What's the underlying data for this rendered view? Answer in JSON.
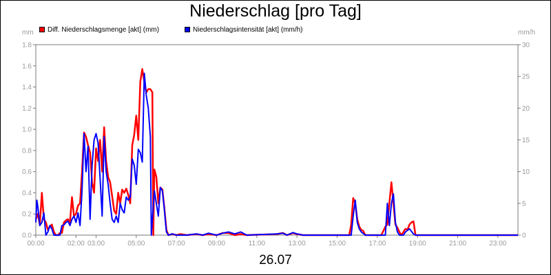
{
  "title": "Niederschlag [pro Tag]",
  "date_label": "26.07",
  "chart_data": {
    "type": "line",
    "title": "Niederschlag [pro Tag]",
    "xlabel": "26.07",
    "y_unit_left": "mm",
    "y_unit_right": "mm/h",
    "xlim": [
      0,
      24
    ],
    "ylim_left": [
      0,
      1.8
    ],
    "ylim_right": [
      0,
      30
    ],
    "y_ticks_left": [
      "0.0",
      "0.2",
      "0.4",
      "0.6",
      "0.8",
      "1.0",
      "1.2",
      "1.4",
      "1.6",
      "1.8"
    ],
    "y_ticks_right": [
      "0",
      "5",
      "10",
      "15",
      "20",
      "25",
      "30"
    ],
    "x_ticks": [
      {
        "x": 0,
        "label": "00:00"
      },
      {
        "x": 2,
        "label": "02:00"
      },
      {
        "x": 3,
        "label": "03:00"
      },
      {
        "x": 5,
        "label": "05:00"
      },
      {
        "x": 7,
        "label": "07:00"
      },
      {
        "x": 9,
        "label": "09:00"
      },
      {
        "x": 11,
        "label": "11:00"
      },
      {
        "x": 13,
        "label": "13:00"
      },
      {
        "x": 15,
        "label": "15:00"
      },
      {
        "x": 17,
        "label": "17:00"
      },
      {
        "x": 19,
        "label": "19:00"
      },
      {
        "x": 21,
        "label": "21:00"
      },
      {
        "x": 23,
        "label": "23:00"
      }
    ],
    "grid": false,
    "legend_position": "top-left",
    "series": [
      {
        "name": "Diff. Niederschlagsmenge [akt] (mm)",
        "axis": "left",
        "color": "#ff0000",
        "points": [
          [
            0,
            0.15
          ],
          [
            0.1,
            0.2
          ],
          [
            0.2,
            0.1
          ],
          [
            0.3,
            0.4
          ],
          [
            0.4,
            0.15
          ],
          [
            0.5,
            0.12
          ],
          [
            0.6,
            0.05
          ],
          [
            0.7,
            0.08
          ],
          [
            0.8,
            0.1
          ],
          [
            0.9,
            0.03
          ],
          [
            1.0,
            0.0
          ],
          [
            1.1,
            0.0
          ],
          [
            1.2,
            0.02
          ],
          [
            1.3,
            0.02
          ],
          [
            1.4,
            0.12
          ],
          [
            1.5,
            0.14
          ],
          [
            1.6,
            0.15
          ],
          [
            1.7,
            0.12
          ],
          [
            1.8,
            0.36
          ],
          [
            1.9,
            0.18
          ],
          [
            2.0,
            0.2
          ],
          [
            2.1,
            0.28
          ],
          [
            2.2,
            0.3
          ],
          [
            2.3,
            0.6
          ],
          [
            2.4,
            0.97
          ],
          [
            2.5,
            0.93
          ],
          [
            2.6,
            0.85
          ],
          [
            2.7,
            0.78
          ],
          [
            2.8,
            0.5
          ],
          [
            2.9,
            0.4
          ],
          [
            3.0,
            0.82
          ],
          [
            3.1,
            0.7
          ],
          [
            3.2,
            0.9
          ],
          [
            3.3,
            0.6
          ],
          [
            3.4,
            1.02
          ],
          [
            3.5,
            0.7
          ],
          [
            3.6,
            0.55
          ],
          [
            3.7,
            0.5
          ],
          [
            3.8,
            0.37
          ],
          [
            3.9,
            0.23
          ],
          [
            4.0,
            0.2
          ],
          [
            4.1,
            0.4
          ],
          [
            4.2,
            0.3
          ],
          [
            4.3,
            0.43
          ],
          [
            4.4,
            0.4
          ],
          [
            4.5,
            0.44
          ],
          [
            4.6,
            0.38
          ],
          [
            4.7,
            0.3
          ],
          [
            4.8,
            0.85
          ],
          [
            4.9,
            0.95
          ],
          [
            5.0,
            1.13
          ],
          [
            5.1,
            0.9
          ],
          [
            5.2,
            1.45
          ],
          [
            5.3,
            1.57
          ],
          [
            5.4,
            1.45
          ],
          [
            5.5,
            1.35
          ],
          [
            5.6,
            1.38
          ],
          [
            5.7,
            1.38
          ],
          [
            5.8,
            1.35
          ],
          [
            5.85,
            0.0
          ],
          [
            5.9,
            0.62
          ],
          [
            6.0,
            0.55
          ],
          [
            6.1,
            0.3
          ],
          [
            6.2,
            0.45
          ],
          [
            6.3,
            0.43
          ],
          [
            6.4,
            0.25
          ],
          [
            6.5,
            0.05
          ],
          [
            6.6,
            0.0
          ],
          [
            6.8,
            0.01
          ],
          [
            7.0,
            0.0
          ],
          [
            7.2,
            0.01
          ],
          [
            7.5,
            0.0
          ],
          [
            8.0,
            0.01
          ],
          [
            8.3,
            0.0
          ],
          [
            8.6,
            0.01
          ],
          [
            9.0,
            0.0
          ],
          [
            9.3,
            0.02
          ],
          [
            9.6,
            0.02
          ],
          [
            9.9,
            0.0
          ],
          [
            10.2,
            0.01
          ],
          [
            10.5,
            0.0
          ],
          [
            12.0,
            0.01
          ],
          [
            12.3,
            0.02
          ],
          [
            12.5,
            0.0
          ],
          [
            12.8,
            0.02
          ],
          [
            13.0,
            0.01
          ],
          [
            13.3,
            0.0
          ],
          [
            15.6,
            0.0
          ],
          [
            15.7,
            0.1
          ],
          [
            15.8,
            0.35
          ],
          [
            15.9,
            0.3
          ],
          [
            16.0,
            0.15
          ],
          [
            16.1,
            0.08
          ],
          [
            16.2,
            0.05
          ],
          [
            16.3,
            0.04
          ],
          [
            16.4,
            0.0
          ],
          [
            17.2,
            0.0
          ],
          [
            17.4,
            0.08
          ],
          [
            17.5,
            0.1
          ],
          [
            17.6,
            0.3
          ],
          [
            17.7,
            0.5
          ],
          [
            17.8,
            0.3
          ],
          [
            17.9,
            0.1
          ],
          [
            18.0,
            0.07
          ],
          [
            18.1,
            0.03
          ],
          [
            18.2,
            0.0
          ],
          [
            18.4,
            0.06
          ],
          [
            18.5,
            0.05
          ],
          [
            18.6,
            0.1
          ],
          [
            18.7,
            0.12
          ],
          [
            18.8,
            0.13
          ],
          [
            18.9,
            0.0
          ],
          [
            24.0,
            0.0
          ]
        ]
      },
      {
        "name": "Niederschlagsintensität [akt] (mm/h)",
        "axis": "right",
        "color": "#0000ff",
        "points": [
          [
            0,
            2
          ],
          [
            0.05,
            5.5
          ],
          [
            0.1,
            4.5
          ],
          [
            0.2,
            1.5
          ],
          [
            0.3,
            2
          ],
          [
            0.4,
            3.5
          ],
          [
            0.5,
            0
          ],
          [
            0.6,
            0.5
          ],
          [
            0.7,
            1.5
          ],
          [
            0.8,
            1
          ],
          [
            0.9,
            0
          ],
          [
            1.0,
            0
          ],
          [
            1.2,
            0
          ],
          [
            1.3,
            1.5
          ],
          [
            1.4,
            1.6
          ],
          [
            1.5,
            2
          ],
          [
            1.6,
            2.2
          ],
          [
            1.7,
            1.5
          ],
          [
            1.8,
            2.5
          ],
          [
            1.9,
            3
          ],
          [
            2.0,
            2
          ],
          [
            2.1,
            3.5
          ],
          [
            2.2,
            1.5
          ],
          [
            2.3,
            7
          ],
          [
            2.4,
            16
          ],
          [
            2.5,
            10
          ],
          [
            2.6,
            14
          ],
          [
            2.7,
            2.5
          ],
          [
            2.8,
            11
          ],
          [
            2.9,
            15
          ],
          [
            3.0,
            16
          ],
          [
            3.1,
            14.5
          ],
          [
            3.2,
            9
          ],
          [
            3.3,
            3
          ],
          [
            3.4,
            15.5
          ],
          [
            3.5,
            10
          ],
          [
            3.6,
            8
          ],
          [
            3.7,
            5
          ],
          [
            3.8,
            2.5
          ],
          [
            3.9,
            2
          ],
          [
            4.0,
            3
          ],
          [
            4.1,
            2
          ],
          [
            4.2,
            5
          ],
          [
            4.3,
            4
          ],
          [
            4.4,
            3.5
          ],
          [
            4.5,
            6
          ],
          [
            4.6,
            5.5
          ],
          [
            4.7,
            6
          ],
          [
            4.8,
            12
          ],
          [
            4.9,
            11
          ],
          [
            5.0,
            8
          ],
          [
            5.1,
            13.5
          ],
          [
            5.2,
            13
          ],
          [
            5.3,
            11.5
          ],
          [
            5.4,
            25.5
          ],
          [
            5.5,
            22
          ],
          [
            5.6,
            20
          ],
          [
            5.7,
            15.5
          ],
          [
            5.75,
            0
          ],
          [
            5.9,
            7
          ],
          [
            6.0,
            5
          ],
          [
            6.1,
            3
          ],
          [
            6.2,
            7.5
          ],
          [
            6.3,
            7
          ],
          [
            6.4,
            4
          ],
          [
            6.5,
            0.5
          ],
          [
            6.6,
            0
          ],
          [
            6.8,
            0.2
          ],
          [
            7.0,
            0
          ],
          [
            7.5,
            0
          ],
          [
            8.0,
            0.2
          ],
          [
            8.3,
            0
          ],
          [
            8.6,
            0.3
          ],
          [
            9.0,
            0
          ],
          [
            9.3,
            0.3
          ],
          [
            9.6,
            0.5
          ],
          [
            9.9,
            0.2
          ],
          [
            10.2,
            0.5
          ],
          [
            10.5,
            0
          ],
          [
            12.0,
            0.2
          ],
          [
            12.3,
            0.3
          ],
          [
            12.5,
            0
          ],
          [
            12.8,
            0.4
          ],
          [
            13.0,
            0.2
          ],
          [
            13.3,
            0
          ],
          [
            15.7,
            0
          ],
          [
            15.8,
            3
          ],
          [
            15.9,
            5.5
          ],
          [
            16.0,
            2
          ],
          [
            16.1,
            1
          ],
          [
            16.2,
            0.5
          ],
          [
            16.4,
            0
          ],
          [
            17.4,
            0
          ],
          [
            17.5,
            5
          ],
          [
            17.6,
            1.5
          ],
          [
            17.7,
            5
          ],
          [
            17.8,
            6.5
          ],
          [
            17.9,
            2
          ],
          [
            18.0,
            0.5
          ],
          [
            18.1,
            0
          ],
          [
            18.3,
            0
          ],
          [
            18.4,
            0.5
          ],
          [
            18.6,
            1
          ],
          [
            18.8,
            0.2
          ],
          [
            18.9,
            0
          ],
          [
            24.0,
            0
          ]
        ]
      }
    ]
  }
}
